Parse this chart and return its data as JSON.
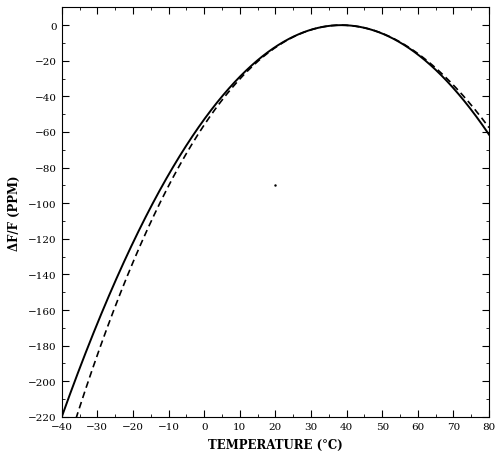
{
  "title": "",
  "xlabel": "TEMPERATURE (°C)",
  "ylabel": "ΔF/F (PPM)",
  "xlim": [
    -40,
    80
  ],
  "ylim": [
    -220,
    10
  ],
  "xticks": [
    -40,
    -30,
    -20,
    -10,
    0,
    10,
    20,
    30,
    40,
    50,
    60,
    70,
    80
  ],
  "yticks": [
    0,
    -20,
    -40,
    -60,
    -80,
    -100,
    -120,
    -140,
    -160,
    -180,
    -200,
    -220
  ],
  "T0": 38.5,
  "solid_color": "#000000",
  "dashed_color": "#000000",
  "linewidth_solid": 1.4,
  "linewidth_dashed": 1.2,
  "background_color": "#ffffff",
  "figsize": [
    5.04,
    4.6
  ],
  "dpi": 100,
  "a_coeff": -0.03565,
  "b_cubic": 5.5e-05,
  "dot_x": 20,
  "dot_y": -90
}
